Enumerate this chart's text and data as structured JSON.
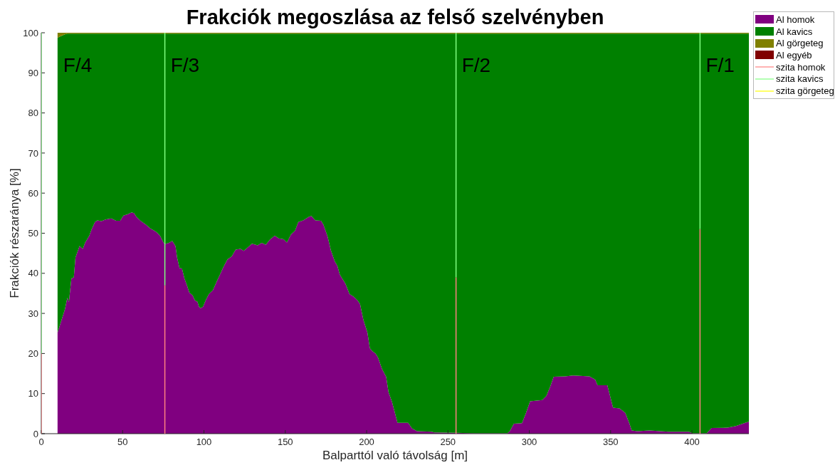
{
  "chart_data": [
    {
      "type": "area",
      "title": "Frakciók megoszlása az felső szelvényben",
      "xlabel": "Balparttól való távolság [m]",
      "ylabel": "Frakciók részaránya [%]",
      "x": [
        10,
        11,
        14.5,
        16,
        17,
        18.5,
        20,
        21,
        23.5,
        25.5,
        27,
        29.5,
        31,
        33,
        34.5,
        37,
        39.5,
        43,
        46,
        48.5,
        50.5,
        53,
        55.5,
        57,
        58.5,
        61,
        64.5,
        67,
        69.5,
        71,
        73,
        75,
        76,
        78.5,
        80.5,
        82.5,
        83.5,
        85,
        86.5,
        88,
        89.5,
        91,
        93,
        94.5,
        96,
        97,
        98,
        99.5,
        101,
        103,
        105.5,
        108,
        109.5,
        112,
        114.5,
        117,
        119.5,
        122.5,
        124.5,
        127,
        129.5,
        133,
        135.5,
        138,
        140.5,
        143.5,
        146,
        149,
        151,
        153.5,
        156,
        158,
        161,
        164.5,
        166,
        168.5,
        172,
        173.5,
        176,
        178,
        180.5,
        182,
        183.5,
        187,
        189.5,
        192,
        194.5,
        196,
        198,
        200.5,
        202,
        203.5,
        205.5,
        207,
        209.5,
        212,
        213.5,
        215.5,
        217,
        219,
        225.5,
        228,
        231,
        240,
        241.5,
        255,
        267,
        286.5,
        288,
        290.5,
        295.5,
        298,
        300.5,
        308,
        310.5,
        313,
        315,
        322,
        327,
        337,
        340.5,
        342,
        348,
        349.5,
        351.5,
        355.5,
        359,
        361.5,
        363,
        366.5,
        374,
        385.5,
        398,
        400.5,
        405,
        409,
        412,
        422,
        427,
        435
      ],
      "series": [
        {
          "name": "Al homok",
          "color": "#800080",
          "values": [
            25.2,
            26.5,
            31,
            33.9,
            32.9,
            38.7,
            39,
            43.9,
            46.8,
            46.1,
            47.7,
            49.4,
            51,
            52.8,
            53.2,
            53,
            53.4,
            53.7,
            53.1,
            53.1,
            54.4,
            54.7,
            55.2,
            55,
            54.1,
            53.1,
            52.1,
            51.2,
            50.6,
            50.2,
            49.4,
            47.8,
            47.3,
            47.6,
            48.1,
            46.8,
            43.9,
            41.3,
            41.2,
            38.7,
            37.1,
            35.2,
            34.5,
            33.2,
            32.9,
            31.6,
            31.3,
            31.7,
            33.2,
            34.8,
            35.8,
            38.1,
            39.4,
            41.6,
            43.5,
            44.2,
            45.9,
            46.1,
            45.6,
            46.5,
            47.4,
            47,
            47.6,
            47.1,
            48.4,
            49.4,
            48.7,
            48.5,
            47.7,
            49.7,
            50.6,
            52.8,
            53.2,
            54.1,
            54.3,
            53.2,
            53.1,
            52.1,
            49.2,
            45.8,
            42.9,
            41.9,
            39.7,
            37.4,
            34.8,
            34.2,
            33.2,
            32.3,
            28.4,
            25.2,
            21.3,
            20.6,
            20,
            19,
            16.1,
            14.2,
            10.3,
            8.1,
            5.8,
            2.7,
            2.7,
            1.3,
            0.6,
            0.5,
            0.3,
            0.2,
            0.1,
            0.1,
            0.6,
            2.5,
            2.6,
            5.2,
            8.1,
            8.4,
            9.4,
            11.9,
            14.2,
            14.3,
            14.5,
            14.3,
            13.5,
            12.1,
            12.1,
            9.7,
            6.5,
            6.3,
            5.2,
            2.6,
            0.8,
            0.6,
            0.8,
            0.5,
            0.5,
            0.1,
            0.1,
            0.1,
            1.4,
            1.5,
            1.9,
            3
          ]
        },
        {
          "name": "Al kavics",
          "color": "#008000",
          "values": [
            73.5,
            72.5,
            68.6,
            65.9,
            66.9,
            61.1,
            60.8,
            55.9,
            53,
            53.7,
            52.1,
            50.4,
            48.8,
            47,
            46.6,
            46.8,
            46.4,
            46.1,
            46.7,
            46.7,
            45.4,
            45.1,
            44.6,
            44.8,
            45.7,
            46.7,
            47.7,
            48.6,
            49.2,
            49.6,
            50.4,
            52,
            52.5,
            52.2,
            51.7,
            53,
            55.9,
            58.5,
            58.6,
            61.1,
            62.7,
            64.6,
            65.3,
            66.6,
            66.9,
            68.2,
            68.5,
            68.1,
            66.6,
            65,
            64,
            61.7,
            60.4,
            58.2,
            56.3,
            55.6,
            53.9,
            53.7,
            54.2,
            53.3,
            52.4,
            52.8,
            52.2,
            52.7,
            51.4,
            50.4,
            51.1,
            51.3,
            52.1,
            50.1,
            49.2,
            47,
            46.6,
            45.7,
            45.5,
            46.6,
            46.7,
            47.7,
            50.6,
            54,
            56.9,
            57.9,
            60.1,
            62.4,
            65,
            65.6,
            66.6,
            67.5,
            71.4,
            74.6,
            78.5,
            79.2,
            79.8,
            80.8,
            83.7,
            85.6,
            89.5,
            91.7,
            94,
            97.1,
            97.1,
            98.5,
            99.2,
            99.3,
            99.5,
            99.6,
            99.7,
            99.7,
            99.2,
            97.3,
            97.2,
            94.6,
            91.7,
            91.4,
            90.4,
            87.9,
            85.6,
            85.5,
            85.3,
            85.5,
            86.3,
            87.7,
            87.7,
            90.1,
            93.3,
            93.5,
            94.6,
            97.2,
            99,
            99.2,
            99,
            99.3,
            99.3,
            99.7,
            99.7,
            99.7,
            98.4,
            98.3,
            97.9,
            96.8
          ]
        },
        {
          "name": "Al görgeteg",
          "color": "#808000",
          "values": [
            1.3,
            1,
            0.4,
            0.2,
            0.2,
            0.2,
            0.2,
            0.2,
            0.2,
            0.2,
            0.2,
            0.2,
            0.2,
            0.2,
            0.2,
            0.2,
            0.2,
            0.2,
            0.2,
            0.2,
            0.2,
            0.2,
            0.2,
            0.2,
            0.2,
            0.2,
            0.2,
            0.2,
            0.2,
            0.2,
            0.2,
            0.2,
            0.2,
            0.2,
            0.2,
            0.2,
            0.2,
            0.2,
            0.2,
            0.2,
            0.2,
            0.2,
            0.2,
            0.2,
            0.2,
            0.2,
            0.2,
            0.2,
            0.2,
            0.2,
            0.2,
            0.2,
            0.2,
            0.2,
            0.2,
            0.2,
            0.2,
            0.2,
            0.2,
            0.2,
            0.2,
            0.2,
            0.2,
            0.2,
            0.2,
            0.2,
            0.2,
            0.2,
            0.2,
            0.2,
            0.2,
            0.2,
            0.2,
            0.2,
            0.2,
            0.2,
            0.2,
            0.2,
            0.2,
            0.2,
            0.2,
            0.2,
            0.2,
            0.2,
            0.2,
            0.2,
            0.2,
            0.2,
            0.2,
            0.2,
            0.2,
            0.2,
            0.2,
            0.2,
            0.2,
            0.2,
            0.2,
            0.2,
            0.2,
            0.2,
            0.2,
            0.2,
            0.2,
            0.2,
            0.2,
            0.2,
            0.2,
            0.2,
            0.2,
            0.2,
            0.2,
            0.2,
            0.2,
            0.2,
            0.2,
            0.2,
            0.2,
            0.2,
            0.2,
            0.2,
            0.2,
            0.2,
            0.2,
            0.2,
            0.2,
            0.2,
            0.2,
            0.2,
            0.2,
            0.2,
            0.2,
            0.2,
            0.2,
            0.2,
            0.2,
            0.2,
            0.2,
            0.2,
            0.2,
            0.2
          ]
        },
        {
          "name": "Al egyéb",
          "color": "#800000",
          "values": [
            null,
            null,
            null,
            null,
            null,
            null,
            null,
            null,
            null,
            null,
            null,
            null,
            null,
            null,
            null,
            null,
            null,
            null,
            null,
            null,
            null,
            null,
            null,
            null,
            null,
            null,
            null,
            null,
            null,
            null,
            null,
            null,
            null,
            null,
            null,
            null,
            null,
            null,
            null,
            null,
            null,
            null,
            null,
            null,
            null,
            null,
            null,
            null,
            null,
            null,
            null,
            null,
            null,
            null,
            null,
            null,
            null,
            null,
            null,
            null,
            null,
            null,
            null,
            null,
            null,
            null,
            null,
            null,
            null,
            null,
            null,
            null,
            null,
            null,
            null,
            null,
            null,
            null,
            null,
            null,
            null,
            null,
            null,
            null,
            null,
            null,
            null,
            null,
            null,
            null,
            null,
            null,
            null,
            null,
            null,
            null,
            null,
            null,
            null,
            null,
            null,
            null,
            null,
            null,
            null,
            null,
            null,
            null,
            null,
            null,
            null,
            null,
            null,
            null,
            null,
            null,
            null,
            null,
            null,
            null,
            null,
            null,
            null,
            null,
            null,
            null,
            null,
            null,
            null,
            null,
            null,
            null,
            null,
            null,
            null,
            null,
            null,
            null,
            null,
            null
          ]
        }
      ],
      "stacked": true,
      "xlim": [
        0,
        435
      ],
      "xticks": [
        0,
        50,
        100,
        150,
        200,
        250,
        300,
        350,
        400
      ],
      "ylim": [
        0,
        100
      ],
      "yticks": [
        0,
        10,
        20,
        30,
        40,
        50,
        60,
        70,
        80,
        90,
        100
      ],
      "legend": "top right",
      "annotations": [
        {
          "text": "F/4",
          "x": 10,
          "y": 100
        },
        {
          "text": "F/3",
          "x": 76,
          "y": 100
        },
        {
          "text": "F/2",
          "x": 255,
          "y": 100
        },
        {
          "text": "F/1",
          "x": 405,
          "y": 100
        }
      ]
    },
    {
      "type": "bar",
      "x": [
        0,
        76,
        255,
        405
      ],
      "series": [
        {
          "name": "szita homok",
          "color": "#ff8080",
          "base": [
            0,
            0,
            0,
            0
          ],
          "values": [
            20,
            37,
            39,
            51
          ]
        },
        {
          "name": "szita kavics",
          "color": "#80ff80",
          "base": [
            20,
            37,
            39,
            51
          ],
          "values": [
            80,
            63,
            61,
            49
          ]
        },
        {
          "name": "szita görgeteg",
          "color": "#ffff00",
          "values": [
            null,
            null,
            null,
            null
          ]
        }
      ],
      "xlim": [
        0,
        435
      ],
      "ylim": [
        0,
        100
      ],
      "tick_labels": false,
      "legend": "top right"
    }
  ]
}
